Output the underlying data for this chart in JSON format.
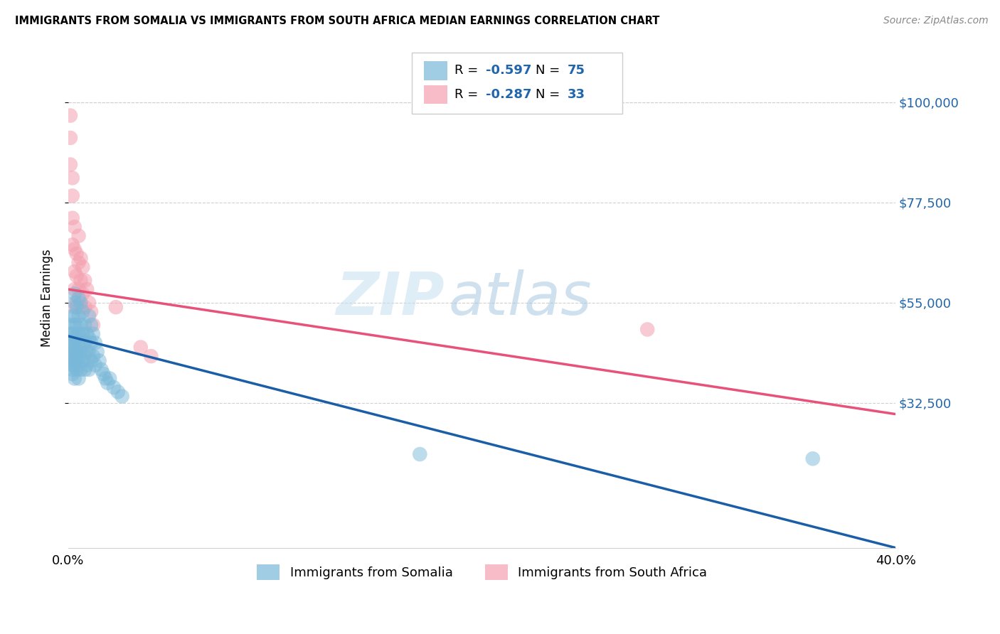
{
  "title": "IMMIGRANTS FROM SOMALIA VS IMMIGRANTS FROM SOUTH AFRICA MEDIAN EARNINGS CORRELATION CHART",
  "source": "Source: ZipAtlas.com",
  "ylabel": "Median Earnings",
  "xlim": [
    0.0,
    0.4
  ],
  "ylim": [
    0,
    112000
  ],
  "somalia_color": "#7ab8d9",
  "south_africa_color": "#f4a0b0",
  "somalia_line_color": "#1a5ea8",
  "south_africa_line_color": "#e8527a",
  "ytick_color": "#2166ac",
  "watermark_color": "#c8dff0",
  "legend_R1": "-0.597",
  "legend_N1": "75",
  "legend_R2": "-0.287",
  "legend_N2": "33",
  "somalia_label": "Immigrants from Somalia",
  "south_africa_label": "Immigrants from South Africa",
  "somalia_line_x0": 0.0,
  "somalia_line_y0": 47500,
  "somalia_line_x1": 0.4,
  "somalia_line_y1": 0,
  "south_africa_line_x0": 0.0,
  "south_africa_line_y0": 58000,
  "south_africa_line_x1": 0.4,
  "south_africa_line_y1": 30000,
  "somalia_x": [
    0.001,
    0.001,
    0.001,
    0.001,
    0.001,
    0.002,
    0.002,
    0.002,
    0.002,
    0.002,
    0.002,
    0.002,
    0.002,
    0.003,
    0.003,
    0.003,
    0.003,
    0.003,
    0.003,
    0.003,
    0.003,
    0.003,
    0.003,
    0.004,
    0.004,
    0.004,
    0.004,
    0.004,
    0.004,
    0.005,
    0.005,
    0.005,
    0.005,
    0.005,
    0.005,
    0.005,
    0.006,
    0.006,
    0.006,
    0.006,
    0.006,
    0.007,
    0.007,
    0.007,
    0.007,
    0.008,
    0.008,
    0.008,
    0.008,
    0.009,
    0.009,
    0.009,
    0.01,
    0.01,
    0.01,
    0.01,
    0.011,
    0.011,
    0.011,
    0.012,
    0.012,
    0.013,
    0.013,
    0.014,
    0.015,
    0.016,
    0.017,
    0.018,
    0.019,
    0.02,
    0.022,
    0.024,
    0.026,
    0.17,
    0.36
  ],
  "somalia_y": [
    48000,
    46000,
    44000,
    42000,
    50000,
    52000,
    48000,
    45000,
    43000,
    41000,
    47000,
    40000,
    39000,
    57000,
    55000,
    52000,
    50000,
    47000,
    45000,
    44000,
    42000,
    41000,
    38000,
    54000,
    50000,
    47000,
    44000,
    42000,
    40000,
    56000,
    52000,
    48000,
    45000,
    43000,
    41000,
    38000,
    55000,
    50000,
    47000,
    44000,
    40000,
    53000,
    48000,
    45000,
    42000,
    50000,
    46000,
    43000,
    40000,
    48000,
    44000,
    41000,
    52000,
    47000,
    44000,
    40000,
    50000,
    46000,
    42000,
    48000,
    43000,
    46000,
    41000,
    44000,
    42000,
    40000,
    39000,
    38000,
    37000,
    38000,
    36000,
    35000,
    34000,
    21000,
    20000
  ],
  "south_africa_x": [
    0.001,
    0.001,
    0.001,
    0.002,
    0.002,
    0.002,
    0.002,
    0.003,
    0.003,
    0.003,
    0.003,
    0.003,
    0.004,
    0.004,
    0.004,
    0.005,
    0.005,
    0.005,
    0.006,
    0.006,
    0.006,
    0.007,
    0.007,
    0.008,
    0.008,
    0.009,
    0.01,
    0.011,
    0.012,
    0.023,
    0.035,
    0.04,
    0.28
  ],
  "south_africa_y": [
    97000,
    92000,
    86000,
    83000,
    79000,
    74000,
    68000,
    72000,
    67000,
    62000,
    58000,
    54000,
    66000,
    61000,
    55000,
    70000,
    64000,
    58000,
    65000,
    60000,
    54000,
    63000,
    57000,
    60000,
    54000,
    58000,
    55000,
    53000,
    50000,
    54000,
    45000,
    43000,
    49000
  ]
}
